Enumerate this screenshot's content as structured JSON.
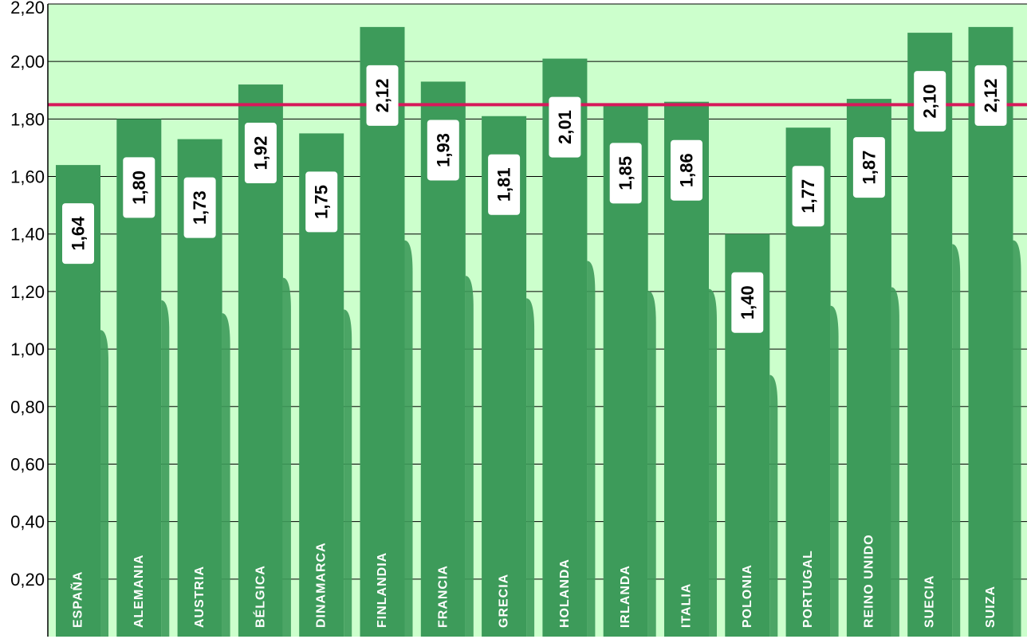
{
  "chart_data": {
    "type": "bar",
    "title": "",
    "xlabel": "",
    "ylabel": "",
    "categories": [
      "ESPAÑA",
      "ALEMANIA",
      "AUSTRIA",
      "BÉLGICA",
      "DINAMARCA",
      "FINLANDIA",
      "FRANCIA",
      "GRECIA",
      "HOLANDA",
      "IRLANDA",
      "ITALIA",
      "POLONIA",
      "PORTUGAL",
      "REINO UNIDO",
      "SUECIA",
      "SUIZA"
    ],
    "values": [
      1.64,
      1.8,
      1.73,
      1.92,
      1.75,
      2.12,
      1.93,
      1.81,
      2.01,
      1.85,
      1.86,
      1.4,
      1.77,
      1.87,
      2.1,
      2.12
    ],
    "value_labels": [
      "1,64",
      "1,80",
      "1,73",
      "1,92",
      "1,75",
      "2,12",
      "1,93",
      "1,81",
      "2,01",
      "1,85",
      "1,86",
      "1,40",
      "1,77",
      "1,87",
      "2,10",
      "2,12"
    ],
    "ylim": [
      0,
      2.2
    ],
    "y_ticks": [
      {
        "value": 0.2,
        "label": "0,20"
      },
      {
        "value": 0.4,
        "label": "0,40"
      },
      {
        "value": 0.6,
        "label": "0,60"
      },
      {
        "value": 0.8,
        "label": "0,80"
      },
      {
        "value": 1.0,
        "label": "1,00"
      },
      {
        "value": 1.2,
        "label": "1,20"
      },
      {
        "value": 1.4,
        "label": "1,40"
      },
      {
        "value": 1.6,
        "label": "1,60"
      },
      {
        "value": 1.8,
        "label": "1,80"
      },
      {
        "value": 2.0,
        "label": "2,00"
      },
      {
        "value": 2.2,
        "label": "2,20"
      }
    ],
    "reference_line": {
      "value": 1.85
    },
    "grid": true,
    "legend": "none",
    "colors": {
      "plot_background": "#ccffcc",
      "bar": "#3d9b5a",
      "reference_line": "#d6185a",
      "grid": "#000000",
      "category_text": "#ffffff",
      "label_box": "#ffffff"
    }
  }
}
